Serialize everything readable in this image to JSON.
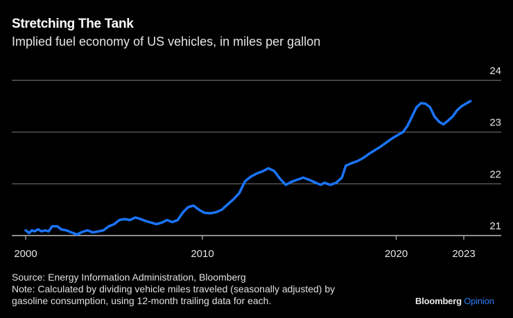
{
  "header": {
    "title": "Stretching The Tank",
    "subtitle": "Implied fuel economy of US vehicles, in miles per gallon"
  },
  "footer": {
    "source": "Source: Energy Information Administration, Bloomberg",
    "note_line1": "Note: Calculated by dividing vehicle miles traveled (seasonally adjusted) by",
    "note_line2": "gasoline consumption, using 12-month trailing data for each.",
    "brand_name": "Bloomberg",
    "brand_suffix": "Opinion"
  },
  "colors": {
    "background": "#000000",
    "line": "#1a75ff",
    "grid": "#6e6e6e",
    "axis": "#bdbdbd"
  },
  "chart_data": {
    "type": "line",
    "title": "Stretching The Tank",
    "subtitle": "Implied fuel economy of US vehicles, in miles per gallon",
    "xlabel": "",
    "ylabel": "",
    "xlim": [
      2000,
      2024
    ],
    "ylim": [
      21,
      24
    ],
    "x_ticks": [
      2000,
      2010,
      2020,
      2023
    ],
    "y_ticks": [
      21,
      22,
      23,
      24
    ],
    "y_axis_side": "right",
    "grid": true,
    "legend": "none",
    "series": [
      {
        "name": "Implied fuel economy (mpg)",
        "points": [
          [
            2000.0,
            21.1
          ],
          [
            2000.2,
            21.05
          ],
          [
            2000.35,
            21.1
          ],
          [
            2000.5,
            21.08
          ],
          [
            2000.7,
            21.12
          ],
          [
            2000.9,
            21.08
          ],
          [
            2001.1,
            21.1
          ],
          [
            2001.3,
            21.08
          ],
          [
            2001.5,
            21.18
          ],
          [
            2001.8,
            21.18
          ],
          [
            2002.0,
            21.12
          ],
          [
            2002.3,
            21.1
          ],
          [
            2002.6,
            21.06
          ],
          [
            2002.9,
            21.02
          ],
          [
            2003.2,
            21.07
          ],
          [
            2003.5,
            21.1
          ],
          [
            2003.8,
            21.06
          ],
          [
            2004.1,
            21.08
          ],
          [
            2004.4,
            21.1
          ],
          [
            2004.7,
            21.18
          ],
          [
            2005.0,
            21.22
          ],
          [
            2005.3,
            21.3
          ],
          [
            2005.6,
            21.32
          ],
          [
            2005.9,
            21.3
          ],
          [
            2006.2,
            21.35
          ],
          [
            2006.5,
            21.32
          ],
          [
            2006.8,
            21.28
          ],
          [
            2007.1,
            21.25
          ],
          [
            2007.4,
            21.22
          ],
          [
            2007.7,
            21.25
          ],
          [
            2008.0,
            21.3
          ],
          [
            2008.3,
            21.26
          ],
          [
            2008.6,
            21.3
          ],
          [
            2008.9,
            21.45
          ],
          [
            2009.2,
            21.55
          ],
          [
            2009.5,
            21.58
          ],
          [
            2009.8,
            21.5
          ],
          [
            2010.1,
            21.44
          ],
          [
            2010.4,
            21.43
          ],
          [
            2010.7,
            21.45
          ],
          [
            2011.0,
            21.5
          ],
          [
            2011.3,
            21.6
          ],
          [
            2011.6,
            21.7
          ],
          [
            2011.9,
            21.82
          ],
          [
            2012.2,
            22.05
          ],
          [
            2012.5,
            22.14
          ],
          [
            2012.8,
            22.2
          ],
          [
            2013.1,
            22.24
          ],
          [
            2013.4,
            22.3
          ],
          [
            2013.7,
            22.25
          ],
          [
            2014.0,
            22.1
          ],
          [
            2014.3,
            21.98
          ],
          [
            2014.6,
            22.04
          ],
          [
            2014.9,
            22.08
          ],
          [
            2015.2,
            22.12
          ],
          [
            2015.5,
            22.08
          ],
          [
            2015.8,
            22.03
          ],
          [
            2016.1,
            21.98
          ],
          [
            2016.3,
            22.02
          ],
          [
            2016.6,
            21.98
          ],
          [
            2016.9,
            22.02
          ],
          [
            2017.2,
            22.12
          ],
          [
            2017.4,
            22.35
          ],
          [
            2017.7,
            22.4
          ],
          [
            2018.0,
            22.44
          ],
          [
            2018.3,
            22.5
          ],
          [
            2018.6,
            22.58
          ],
          [
            2018.9,
            22.65
          ],
          [
            2019.2,
            22.72
          ],
          [
            2019.5,
            22.8
          ],
          [
            2019.8,
            22.88
          ],
          [
            2020.1,
            22.95
          ],
          [
            2020.3,
            23.0
          ],
          [
            2020.5,
            23.12
          ],
          [
            2020.7,
            23.3
          ],
          [
            2020.9,
            23.48
          ],
          [
            2021.1,
            23.56
          ],
          [
            2021.3,
            23.55
          ],
          [
            2021.5,
            23.48
          ],
          [
            2021.7,
            23.3
          ],
          [
            2021.9,
            23.2
          ],
          [
            2022.1,
            23.15
          ],
          [
            2022.3,
            23.22
          ],
          [
            2022.5,
            23.3
          ],
          [
            2022.7,
            23.42
          ],
          [
            2022.9,
            23.5
          ],
          [
            2023.1,
            23.55
          ],
          [
            2023.3,
            23.6
          ]
        ]
      }
    ]
  }
}
